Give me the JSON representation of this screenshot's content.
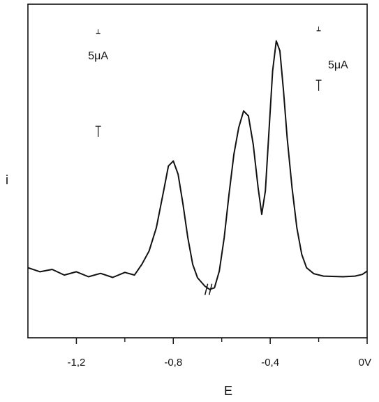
{
  "chart_data": {
    "type": "line",
    "xlabel": "E",
    "ylabel": "i",
    "xlim": [
      -1.4,
      0.0
    ],
    "x_ticks": [
      {
        "value": -1.2,
        "label": "-1,2"
      },
      {
        "value": -0.8,
        "label": "-0,8"
      },
      {
        "value": -0.4,
        "label": "-0,4"
      },
      {
        "value": 0.0,
        "label": "0V"
      }
    ],
    "x_minor_ticks": [
      -1.0,
      -0.6,
      -0.2
    ],
    "scale_bars": [
      {
        "label": "5μA",
        "x": -1.11
      },
      {
        "label": "5μA",
        "x": -0.2
      }
    ],
    "grid": false,
    "axis_break": -0.655,
    "series": [
      {
        "values": [
          {
            "x": -1.4,
            "y": 0.21
          },
          {
            "x": -1.35,
            "y": 0.21
          },
          {
            "x": -1.3,
            "y": 0.205
          },
          {
            "x": -1.25,
            "y": 0.2
          },
          {
            "x": -1.2,
            "y": 0.198
          },
          {
            "x": -1.15,
            "y": 0.195
          },
          {
            "x": -1.1,
            "y": 0.193
          },
          {
            "x": -1.05,
            "y": 0.193
          },
          {
            "x": -1.0,
            "y": 0.196
          },
          {
            "x": -0.96,
            "y": 0.2
          },
          {
            "x": -0.93,
            "y": 0.22
          },
          {
            "x": -0.9,
            "y": 0.26
          },
          {
            "x": -0.87,
            "y": 0.33
          },
          {
            "x": -0.84,
            "y": 0.44
          },
          {
            "x": -0.82,
            "y": 0.515
          },
          {
            "x": -0.8,
            "y": 0.53
          },
          {
            "x": -0.78,
            "y": 0.49
          },
          {
            "x": -0.76,
            "y": 0.4
          },
          {
            "x": -0.74,
            "y": 0.3
          },
          {
            "x": -0.72,
            "y": 0.22
          },
          {
            "x": -0.7,
            "y": 0.18
          },
          {
            "x": -0.67,
            "y": 0.155
          },
          {
            "x": -0.65,
            "y": 0.145
          },
          {
            "x": -0.63,
            "y": 0.15
          },
          {
            "x": -0.61,
            "y": 0.2
          },
          {
            "x": -0.59,
            "y": 0.3
          },
          {
            "x": -0.57,
            "y": 0.43
          },
          {
            "x": -0.55,
            "y": 0.55
          },
          {
            "x": -0.53,
            "y": 0.63
          },
          {
            "x": -0.51,
            "y": 0.68
          },
          {
            "x": -0.49,
            "y": 0.665
          },
          {
            "x": -0.47,
            "y": 0.58
          },
          {
            "x": -0.45,
            "y": 0.45
          },
          {
            "x": -0.435,
            "y": 0.37
          },
          {
            "x": -0.42,
            "y": 0.44
          },
          {
            "x": -0.405,
            "y": 0.62
          },
          {
            "x": -0.39,
            "y": 0.8
          },
          {
            "x": -0.375,
            "y": 0.89
          },
          {
            "x": -0.36,
            "y": 0.86
          },
          {
            "x": -0.345,
            "y": 0.74
          },
          {
            "x": -0.33,
            "y": 0.6
          },
          {
            "x": -0.31,
            "y": 0.45
          },
          {
            "x": -0.29,
            "y": 0.33
          },
          {
            "x": -0.27,
            "y": 0.25
          },
          {
            "x": -0.25,
            "y": 0.21
          },
          {
            "x": -0.22,
            "y": 0.192
          },
          {
            "x": -0.18,
            "y": 0.185
          },
          {
            "x": -0.1,
            "y": 0.183
          },
          {
            "x": -0.05,
            "y": 0.185
          },
          {
            "x": -0.02,
            "y": 0.19
          },
          {
            "x": 0.0,
            "y": 0.2
          }
        ]
      }
    ]
  }
}
